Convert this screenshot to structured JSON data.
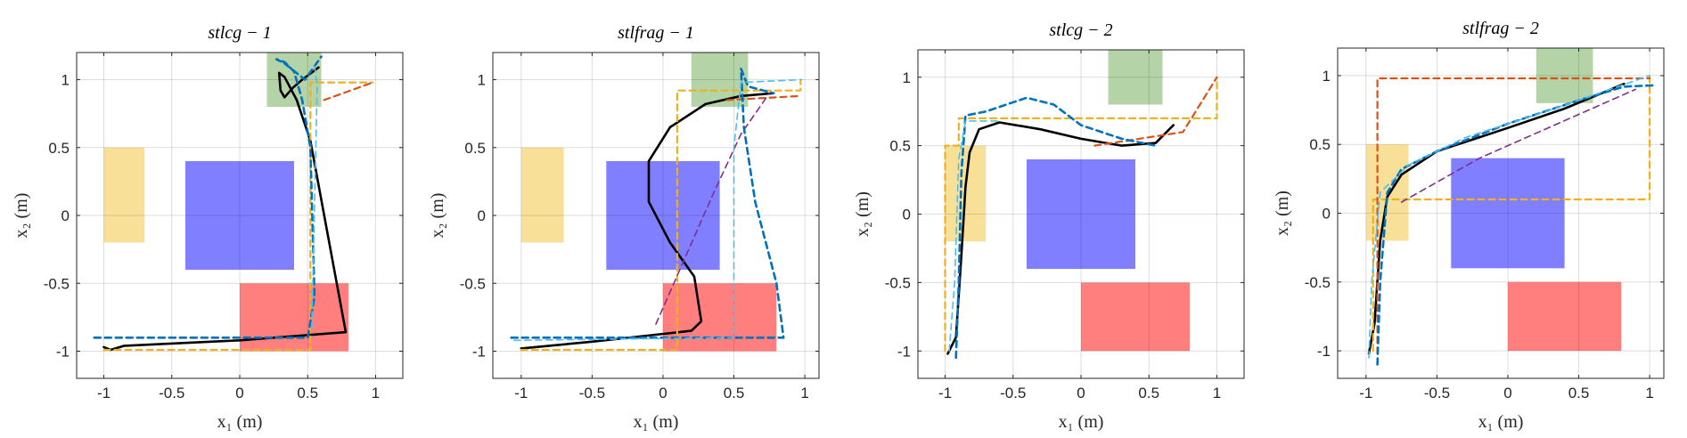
{
  "figure": {
    "colors": {
      "region_yellow": "#f1c232",
      "region_blue": "#0000ff",
      "region_red": "#ff0000",
      "region_green": "#6aa84f",
      "black": "#000000",
      "blue_dash": "#0072bd",
      "cyan_dash": "#4dbeee",
      "orange_dash": "#edb120",
      "red_dash": "#d95319",
      "purple_dash": "#7e2f8e"
    }
  },
  "chart_data": [
    {
      "type": "line",
      "title": "stlcg − 1",
      "xlabel": "x₁ (m)",
      "ylabel": "x₂ (m)",
      "xlim": [
        -1.2,
        1.2
      ],
      "ylim": [
        -1.2,
        1.2
      ],
      "xticks": [
        -1,
        -0.5,
        0,
        0.5,
        1
      ],
      "yticks": [
        -1,
        -0.5,
        0,
        0.5,
        1
      ],
      "xticklabels": [
        "-1",
        "-0.5",
        "0",
        "0.5",
        "1"
      ],
      "yticklabels": [
        "-1",
        "-0.5",
        "0",
        "0.5",
        "1"
      ],
      "grid": true,
      "regions": [
        {
          "name": "yellow",
          "x": [
            -1,
            -0.7
          ],
          "y": [
            -0.2,
            0.5
          ]
        },
        {
          "name": "blue",
          "x": [
            -0.4,
            0.4
          ],
          "y": [
            -0.4,
            0.4
          ]
        },
        {
          "name": "red",
          "x": [
            0,
            0.8
          ],
          "y": [
            -1,
            -0.5
          ]
        },
        {
          "name": "green",
          "x": [
            0.2,
            0.6
          ],
          "y": [
            0.8,
            1.2
          ]
        }
      ],
      "series": [
        {
          "style": "black",
          "points": [
            [
              -1,
              -0.97
            ],
            [
              -0.95,
              -0.99
            ],
            [
              -0.85,
              -0.96
            ],
            [
              0,
              -0.92
            ],
            [
              0.78,
              -0.86
            ],
            [
              0.52,
              0.55
            ],
            [
              0.42,
              0.85
            ],
            [
              0.33,
              1.02
            ],
            [
              0.29,
              1.05
            ],
            [
              0.3,
              0.92
            ],
            [
              0.33,
              0.87
            ],
            [
              0.39,
              0.94
            ],
            [
              0.46,
              1.0
            ],
            [
              0.58,
              1.09
            ]
          ]
        },
        {
          "style": "orange_dash",
          "points": [
            [
              -1,
              -0.99
            ],
            [
              0.52,
              -0.99
            ],
            [
              0.52,
              0.98
            ],
            [
              0.98,
              0.98
            ]
          ]
        },
        {
          "style": "red_dash",
          "points": [
            [
              0.62,
              0.85
            ],
            [
              0.98,
              0.98
            ]
          ]
        },
        {
          "style": "blue_dash",
          "points": [
            [
              -1.07,
              -0.9
            ],
            [
              0.5,
              -0.9
            ],
            [
              0.55,
              -0.6
            ],
            [
              0.52,
              0.5
            ],
            [
              0.46,
              0.85
            ],
            [
              0.4,
              1.06
            ],
            [
              0.33,
              1.13
            ],
            [
              0.27,
              1.15
            ],
            [
              0.33,
              1.12
            ],
            [
              0.48,
              1.0
            ],
            [
              0.6,
              1.17
            ]
          ]
        },
        {
          "style": "cyan_dash",
          "points": [
            [
              0.55,
              1.1
            ],
            [
              0.57,
              0.95
            ],
            [
              0.56,
              0.5
            ],
            [
              0.53,
              -0.85
            ]
          ]
        }
      ]
    },
    {
      "type": "line",
      "title": "stlfrag − 1",
      "xlabel": "x₁ (m)",
      "ylabel": "x₂ (m)",
      "xlim": [
        -1.2,
        1.1
      ],
      "ylim": [
        -1.2,
        1.2
      ],
      "xticks": [
        -1,
        -0.5,
        0,
        0.5,
        1
      ],
      "yticks": [
        -1,
        -0.5,
        0,
        0.5,
        1
      ],
      "xticklabels": [
        "-1",
        "-0.5",
        "0",
        "0.5",
        "1"
      ],
      "yticklabels": [
        "-1",
        "-0.5",
        "0",
        "0.5",
        "1"
      ],
      "grid": true,
      "regions": [
        {
          "name": "yellow",
          "x": [
            -1,
            -0.7
          ],
          "y": [
            -0.2,
            0.5
          ]
        },
        {
          "name": "blue",
          "x": [
            -0.4,
            0.4
          ],
          "y": [
            -0.4,
            0.4
          ]
        },
        {
          "name": "red",
          "x": [
            0,
            0.8
          ],
          "y": [
            -1,
            -0.5
          ]
        },
        {
          "name": "green",
          "x": [
            0.2,
            0.6
          ],
          "y": [
            0.8,
            1.2
          ]
        }
      ],
      "series": [
        {
          "style": "black",
          "points": [
            [
              -1,
              -0.98
            ],
            [
              -0.5,
              -0.93
            ],
            [
              0.2,
              -0.85
            ],
            [
              0.27,
              -0.78
            ],
            [
              0.22,
              -0.45
            ],
            [
              0.05,
              -0.2
            ],
            [
              -0.1,
              0.1
            ],
            [
              -0.1,
              0.4
            ],
            [
              0.05,
              0.65
            ],
            [
              0.3,
              0.82
            ],
            [
              0.55,
              0.88
            ],
            [
              0.78,
              0.9
            ]
          ]
        },
        {
          "style": "orange_dash",
          "points": [
            [
              -1,
              -0.99
            ],
            [
              0.1,
              -0.99
            ],
            [
              0.1,
              0.92
            ],
            [
              0.97,
              0.92
            ],
            [
              0.97,
              1.0
            ]
          ]
        },
        {
          "style": "red_dash",
          "points": [
            [
              0.45,
              0.85
            ],
            [
              0.97,
              0.88
            ]
          ]
        },
        {
          "style": "purple_dash",
          "points": [
            [
              -0.05,
              -0.8
            ],
            [
              0.35,
              0.15
            ],
            [
              0.55,
              0.6
            ],
            [
              0.75,
              0.9
            ]
          ]
        },
        {
          "style": "blue_dash",
          "points": [
            [
              -1.07,
              -0.9
            ],
            [
              0.85,
              -0.9
            ],
            [
              0.8,
              -0.5
            ],
            [
              0.65,
              0.1
            ],
            [
              0.57,
              0.65
            ],
            [
              0.55,
              1.08
            ],
            [
              0.6,
              0.95
            ],
            [
              0.78,
              0.9
            ]
          ]
        },
        {
          "style": "cyan_dash",
          "points": [
            [
              -1.05,
              -0.92
            ],
            [
              0.5,
              -0.9
            ],
            [
              0.5,
              0.5
            ],
            [
              0.55,
              0.98
            ],
            [
              0.98,
              1.0
            ]
          ]
        }
      ]
    },
    {
      "type": "line",
      "title": "stlcg − 2",
      "xlabel": "x₁ (m)",
      "ylabel": "x₂ (m)",
      "xlim": [
        -1.2,
        1.2
      ],
      "ylim": [
        -1.2,
        1.2
      ],
      "xticks": [
        -1,
        -0.5,
        0,
        0.5,
        1
      ],
      "yticks": [
        -1,
        -0.5,
        0,
        0.5,
        1
      ],
      "xticklabels": [
        "-1",
        "-0.5",
        "0",
        "0.5",
        "1"
      ],
      "yticklabels": [
        "-1",
        "-0.5",
        "0",
        "0.5",
        "1"
      ],
      "grid": true,
      "regions": [
        {
          "name": "yellow",
          "x": [
            -1,
            -0.7
          ],
          "y": [
            -0.2,
            0.5
          ]
        },
        {
          "name": "blue",
          "x": [
            -0.4,
            0.4
          ],
          "y": [
            -0.4,
            0.4
          ]
        },
        {
          "name": "red",
          "x": [
            0,
            0.8
          ],
          "y": [
            -1,
            -0.5
          ]
        },
        {
          "name": "green",
          "x": [
            0.2,
            0.6
          ],
          "y": [
            0.8,
            1.2
          ]
        }
      ],
      "series": [
        {
          "style": "black",
          "points": [
            [
              -0.98,
              -1.02
            ],
            [
              -0.92,
              -0.9
            ],
            [
              -0.88,
              -0.3
            ],
            [
              -0.85,
              0.2
            ],
            [
              -0.82,
              0.45
            ],
            [
              -0.75,
              0.62
            ],
            [
              -0.6,
              0.67
            ],
            [
              -0.3,
              0.62
            ],
            [
              0,
              0.55
            ],
            [
              0.3,
              0.5
            ],
            [
              0.55,
              0.52
            ],
            [
              0.68,
              0.65
            ]
          ]
        },
        {
          "style": "orange_dash",
          "points": [
            [
              -1,
              -1.0
            ],
            [
              -1,
              0.5
            ],
            [
              -0.9,
              0.5
            ],
            [
              -0.9,
              0.7
            ],
            [
              1.0,
              0.7
            ],
            [
              1.0,
              1.0
            ]
          ]
        },
        {
          "style": "red_dash",
          "points": [
            [
              0.1,
              0.5
            ],
            [
              0.75,
              0.6
            ],
            [
              1.0,
              1.0
            ]
          ]
        },
        {
          "style": "blue_dash",
          "points": [
            [
              -0.92,
              -1.05
            ],
            [
              -0.9,
              -0.5
            ],
            [
              -0.88,
              0.3
            ],
            [
              -0.85,
              0.72
            ],
            [
              -0.7,
              0.75
            ],
            [
              -0.4,
              0.85
            ],
            [
              -0.2,
              0.8
            ],
            [
              0,
              0.65
            ],
            [
              0.3,
              0.55
            ],
            [
              0.55,
              0.5
            ]
          ]
        },
        {
          "style": "cyan_dash",
          "points": [
            [
              -0.97,
              -1.0
            ],
            [
              -0.93,
              -0.5
            ],
            [
              -0.9,
              0.4
            ],
            [
              -0.85,
              0.68
            ],
            [
              -0.6,
              0.68
            ]
          ]
        }
      ]
    },
    {
      "type": "line",
      "title": "stlfrag − 2",
      "xlabel": "x₁ (m)",
      "ylabel": "x₂ (m)",
      "xlim": [
        -1.2,
        1.1
      ],
      "ylim": [
        -1.2,
        1.2
      ],
      "xticks": [
        -1,
        -0.5,
        0,
        0.5,
        1
      ],
      "yticks": [
        -1,
        -0.5,
        0,
        0.5,
        1
      ],
      "xticklabels": [
        "-1",
        "-0.5",
        "0",
        "0.5",
        "1"
      ],
      "yticklabels": [
        "-1",
        "-0.5",
        "0",
        "0.5",
        "1"
      ],
      "grid": true,
      "regions": [
        {
          "name": "yellow",
          "x": [
            -1,
            -0.7
          ],
          "y": [
            -0.2,
            0.5
          ]
        },
        {
          "name": "blue",
          "x": [
            -0.4,
            0.4
          ],
          "y": [
            -0.4,
            0.4
          ]
        },
        {
          "name": "red",
          "x": [
            0,
            0.8
          ],
          "y": [
            -1,
            -0.5
          ]
        },
        {
          "name": "green",
          "x": [
            0.2,
            0.6
          ],
          "y": [
            0.8,
            1.2
          ]
        }
      ],
      "series": [
        {
          "style": "black",
          "points": [
            [
              -0.98,
              -1.02
            ],
            [
              -0.94,
              -0.8
            ],
            [
              -0.9,
              -0.2
            ],
            [
              -0.85,
              0.12
            ],
            [
              -0.75,
              0.28
            ],
            [
              -0.5,
              0.45
            ],
            [
              0,
              0.62
            ],
            [
              0.4,
              0.76
            ],
            [
              0.82,
              0.94
            ]
          ]
        },
        {
          "style": "orange_dash",
          "points": [
            [
              -0.95,
              -1.0
            ],
            [
              -0.95,
              0.1
            ],
            [
              1.0,
              0.1
            ],
            [
              1.0,
              1.0
            ]
          ]
        },
        {
          "style": "red_dash",
          "points": [
            [
              -0.92,
              -1.02
            ],
            [
              -0.92,
              0.98
            ],
            [
              1.0,
              0.98
            ]
          ]
        },
        {
          "style": "purple_dash",
          "points": [
            [
              -0.75,
              0.08
            ],
            [
              -0.2,
              0.4
            ],
            [
              0.9,
              0.9
            ]
          ]
        },
        {
          "style": "blue_dash",
          "points": [
            [
              -0.92,
              -1.1
            ],
            [
              -0.9,
              -0.5
            ],
            [
              -0.85,
              0.15
            ],
            [
              -0.75,
              0.32
            ],
            [
              -0.5,
              0.45
            ],
            [
              0,
              0.65
            ],
            [
              0.5,
              0.82
            ],
            [
              0.82,
              0.92
            ],
            [
              1.05,
              0.93
            ]
          ]
        },
        {
          "style": "cyan_dash",
          "points": [
            [
              -0.98,
              -1.05
            ],
            [
              -0.96,
              -0.5
            ],
            [
              -0.9,
              0.15
            ],
            [
              -0.7,
              0.35
            ],
            [
              -0.3,
              0.55
            ],
            [
              0.3,
              0.75
            ],
            [
              1.0,
              1.0
            ]
          ]
        }
      ]
    }
  ]
}
